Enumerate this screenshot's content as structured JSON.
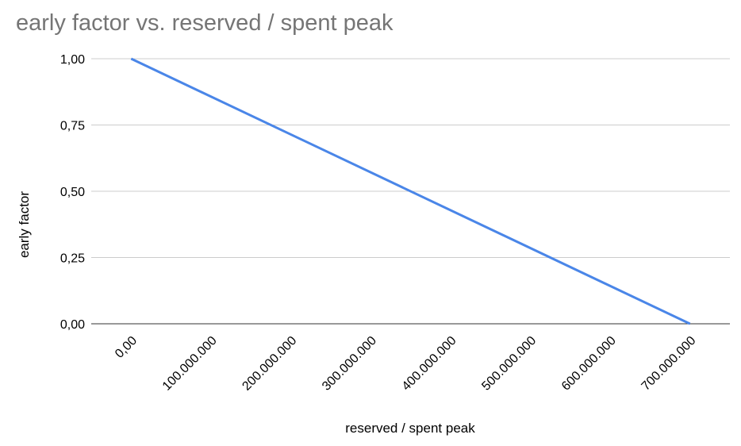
{
  "chart_data": {
    "type": "line",
    "title": "early factor vs. reserved / spent peak",
    "x_label": "reserved / spent peak",
    "y_label": "early factor",
    "x": [
      0,
      700000000
    ],
    "series": [
      {
        "name": "early factor",
        "color": "#4a86e8",
        "values": [
          1,
          0
        ]
      }
    ],
    "xlim": [
      -50000000,
      750000000
    ],
    "xticks": [
      {
        "value": 0,
        "label": "0,00"
      },
      {
        "value": 100000000,
        "label": "100.000.000"
      },
      {
        "value": 200000000,
        "label": "200.000.000"
      },
      {
        "value": 300000000,
        "label": "300.000.000"
      },
      {
        "value": 400000000,
        "label": "400.000.000"
      },
      {
        "value": 500000000,
        "label": "500.000.000"
      },
      {
        "value": 600000000,
        "label": "600.000.000"
      },
      {
        "value": 700000000,
        "label": "700.000.000"
      }
    ],
    "ylim": [
      0,
      1
    ],
    "yticks": [
      {
        "value": 0,
        "label": "0,00"
      },
      {
        "value": 0.25,
        "label": "0,25"
      },
      {
        "value": 0.5,
        "label": "0,50"
      },
      {
        "value": 0.75,
        "label": "0,75"
      },
      {
        "value": 1,
        "label": "1,00"
      }
    ],
    "grid": true
  }
}
